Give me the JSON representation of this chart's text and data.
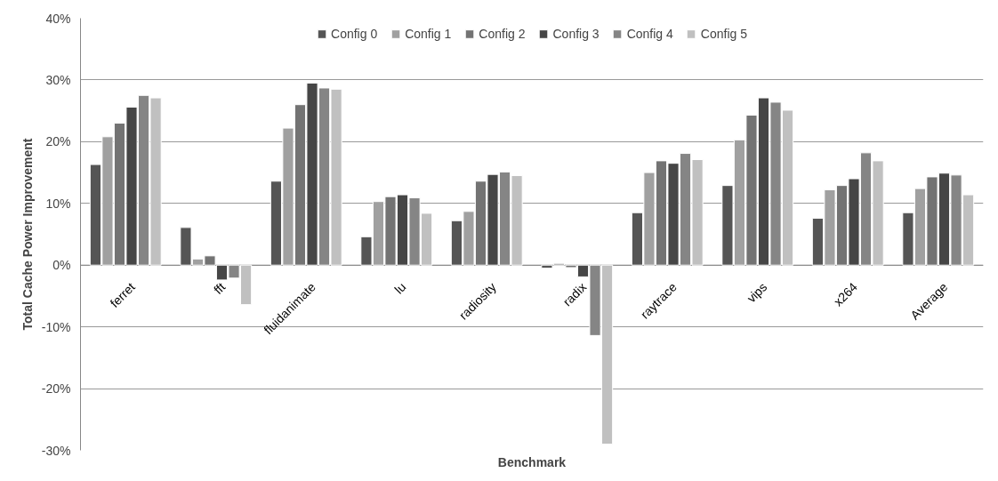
{
  "chart_data": {
    "type": "bar",
    "xlabel": "Benchmark",
    "ylabel": "Total Cache Power Improvement",
    "categories": [
      "ferret",
      "fft",
      "fluidanimate",
      "lu",
      "radiosity",
      "radix",
      "raytrace",
      "vips",
      "x264",
      "Average"
    ],
    "series": [
      {
        "name": "Config 0",
        "color": "#555555",
        "values": [
          16.3,
          6.1,
          13.6,
          4.6,
          7.2,
          -0.5,
          8.5,
          12.9,
          7.6,
          8.5
        ]
      },
      {
        "name": "Config 1",
        "color": "#a0a0a0",
        "values": [
          20.8,
          1.0,
          22.2,
          10.3,
          8.7,
          0.3,
          15.0,
          20.3,
          12.2,
          12.4
        ]
      },
      {
        "name": "Config 2",
        "color": "#737373",
        "values": [
          23.0,
          1.5,
          26.0,
          11.1,
          13.6,
          -0.4,
          16.9,
          24.3,
          12.9,
          14.3
        ]
      },
      {
        "name": "Config 3",
        "color": "#464646",
        "values": [
          25.6,
          -2.4,
          29.5,
          11.4,
          14.7,
          -1.9,
          16.5,
          27.1,
          14.0,
          14.9
        ]
      },
      {
        "name": "Config 4",
        "color": "#858585",
        "values": [
          27.5,
          -2.1,
          28.7,
          10.9,
          15.1,
          -11.4,
          18.1,
          26.4,
          18.2,
          14.6
        ]
      },
      {
        "name": "Config 5",
        "color": "#c0c0c0",
        "values": [
          27.1,
          -6.4,
          28.5,
          8.4,
          14.5,
          -29.0,
          17.1,
          25.1,
          16.9,
          11.4
        ]
      }
    ],
    "ylim": [
      -30,
      40
    ],
    "yticks": [
      {
        "value": -30,
        "label": "-30%"
      },
      {
        "value": -20,
        "label": "-20%"
      },
      {
        "value": -10,
        "label": "-10%"
      },
      {
        "value": 0,
        "label": "0%"
      },
      {
        "value": 10,
        "label": "10%"
      },
      {
        "value": 20,
        "label": "20%"
      },
      {
        "value": 30,
        "label": "30%"
      },
      {
        "value": 40,
        "label": "40%"
      }
    ],
    "grid": "y",
    "legend": "top"
  }
}
